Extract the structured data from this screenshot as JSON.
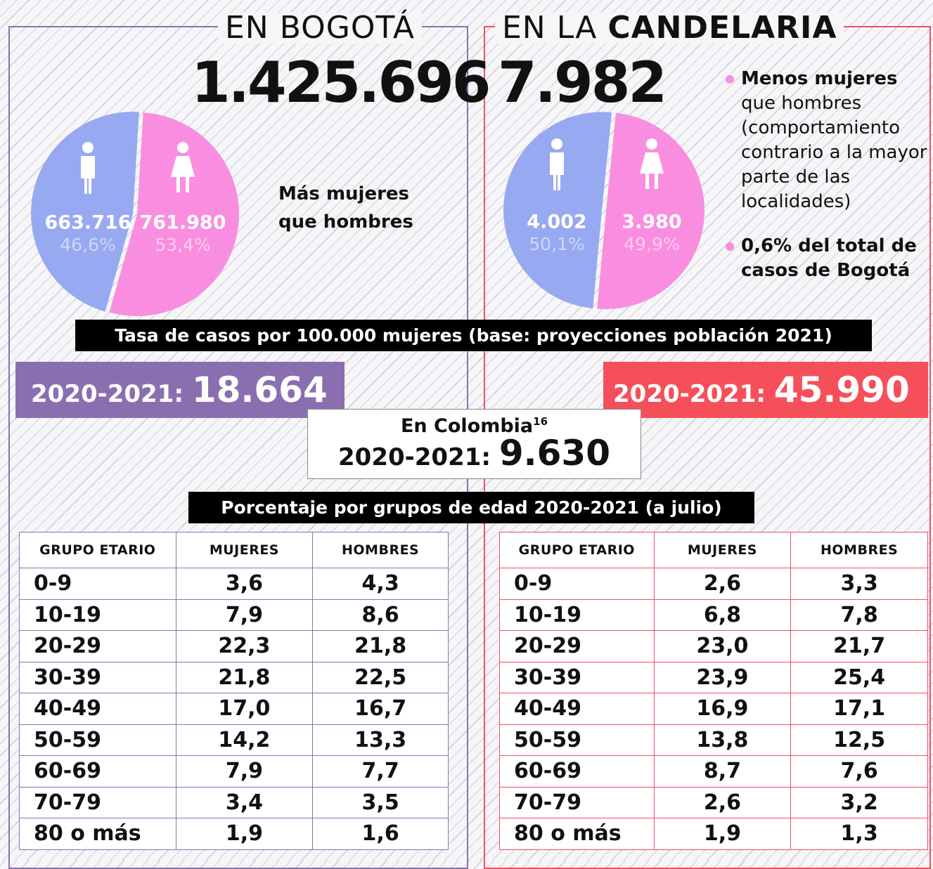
{
  "left": {
    "title": "EN BOGOTÁ",
    "total": "1.425.696",
    "pie": {
      "type": "pie",
      "values": [
        663716,
        761980
      ],
      "value_labels": [
        "663.716",
        "761.980"
      ],
      "percents": [
        46.6,
        53.4
      ],
      "percent_labels": [
        "46,6%",
        "53,4%"
      ],
      "colors": [
        "#97a9f0",
        "#f98ee0"
      ]
    },
    "note": "Más mujeres que hombres",
    "rate": {
      "label": "2020-2021:",
      "value": "18.664"
    },
    "table": {
      "header": [
        "GRUPO ETARIO",
        "MUJERES",
        "HOMBRES"
      ],
      "rows": [
        [
          "0-9",
          "3,6",
          "4,3"
        ],
        [
          "10-19",
          "7,9",
          "8,6"
        ],
        [
          "20-29",
          "22,3",
          "21,8"
        ],
        [
          "30-39",
          "21,8",
          "22,5"
        ],
        [
          "40-49",
          "17,0",
          "16,7"
        ],
        [
          "50-59",
          "14,2",
          "13,3"
        ],
        [
          "60-69",
          "7,9",
          "7,7"
        ],
        [
          "70-79",
          "3,4",
          "3,5"
        ],
        [
          "80 o más",
          "1,9",
          "1,6"
        ]
      ]
    }
  },
  "right": {
    "title_light": "EN LA",
    "title_bold": "CANDELARIA",
    "total": "7.982",
    "pie": {
      "type": "pie",
      "values": [
        4002,
        3980
      ],
      "value_labels": [
        "4.002",
        "3.980"
      ],
      "percents": [
        50.1,
        49.9
      ],
      "percent_labels": [
        "50,1%",
        "49,9%"
      ],
      "colors": [
        "#97a9f0",
        "#f98ee0"
      ]
    },
    "notes": [
      {
        "bold": "Menos mujeres",
        "text": "que hombres (comportamiento contrario a la mayor parte de las localidades)"
      },
      {
        "bold": "0,6% del total de casos de Bogotá",
        "text": ""
      }
    ],
    "rate": {
      "label": "2020-2021:",
      "value": "45.990"
    },
    "table": {
      "header": [
        "GRUPO ETARIO",
        "MUJERES",
        "HOMBRES"
      ],
      "rows": [
        [
          "0-9",
          "2,6",
          "3,3"
        ],
        [
          "10-19",
          "6,8",
          "7,8"
        ],
        [
          "20-29",
          "23,0",
          "21,7"
        ],
        [
          "30-39",
          "23,9",
          "25,4"
        ],
        [
          "40-49",
          "16,9",
          "17,1"
        ],
        [
          "50-59",
          "13,8",
          "12,5"
        ],
        [
          "60-69",
          "8,7",
          "7,6"
        ],
        [
          "70-79",
          "2,6",
          "3,2"
        ],
        [
          "80 o más",
          "1,9",
          "1,3"
        ]
      ]
    }
  },
  "rate_banner": "Tasa de casos por 100.000 mujeres (base: proyecciones población 2021)",
  "colombia": {
    "title": "En Colombia",
    "footnote": "16",
    "label": "2020-2021:",
    "value": "9.630"
  },
  "age_banner": "Porcentaje por grupos de edad 2020-2021 (a julio)"
}
